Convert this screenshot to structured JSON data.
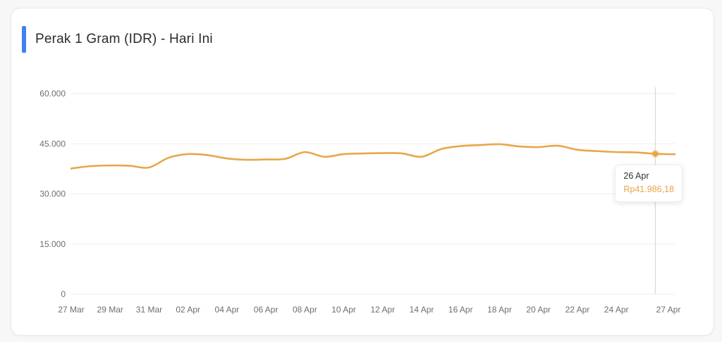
{
  "page": {
    "background": "#f7f7f7"
  },
  "card": {
    "accent_color": "#3d82f4",
    "title": "Perak 1 Gram (IDR) - Hari Ini"
  },
  "chart_data": {
    "type": "line",
    "title": "Perak 1 Gram (IDR) - Hari Ini",
    "line_color": "#e9a64a",
    "grid": "horizontal-only",
    "legend": "none",
    "ylim": [
      0,
      60000
    ],
    "y_ticks": [
      {
        "value": 60000,
        "label": "60.000"
      },
      {
        "value": 45000,
        "label": "45.000"
      },
      {
        "value": 30000,
        "label": "30.000"
      },
      {
        "value": 15000,
        "label": "15.000"
      },
      {
        "value": 0,
        "label": "0"
      }
    ],
    "x_ticks": [
      {
        "label": "27 Mar",
        "day": 0
      },
      {
        "label": "29 Mar",
        "day": 2
      },
      {
        "label": "31 Mar",
        "day": 4
      },
      {
        "label": "02 Apr",
        "day": 6
      },
      {
        "label": "04 Apr",
        "day": 8
      },
      {
        "label": "06 Apr",
        "day": 10
      },
      {
        "label": "08 Apr",
        "day": 12
      },
      {
        "label": "10 Apr",
        "day": 14
      },
      {
        "label": "12 Apr",
        "day": 16
      },
      {
        "label": "14 Apr",
        "day": 18
      },
      {
        "label": "16 Apr",
        "day": 20
      },
      {
        "label": "18 Apr",
        "day": 22
      },
      {
        "label": "20 Apr",
        "day": 24
      },
      {
        "label": "22 Apr",
        "day": 26
      },
      {
        "label": "24 Apr",
        "day": 28
      },
      {
        "label": "27 Apr",
        "day": 31
      }
    ],
    "x": [
      "27 Mar",
      "28 Mar",
      "29 Mar",
      "30 Mar",
      "31 Mar",
      "01 Apr",
      "02 Apr",
      "03 Apr",
      "04 Apr",
      "05 Apr",
      "06 Apr",
      "07 Apr",
      "08 Apr",
      "09 Apr",
      "10 Apr",
      "11 Apr",
      "12 Apr",
      "13 Apr",
      "14 Apr",
      "15 Apr",
      "16 Apr",
      "17 Apr",
      "18 Apr",
      "19 Apr",
      "20 Apr",
      "21 Apr",
      "22 Apr",
      "23 Apr",
      "24 Apr",
      "25 Apr",
      "26 Apr",
      "27 Apr"
    ],
    "series": [
      {
        "name": "Perak 1 Gram (IDR)",
        "values": [
          37600,
          38300,
          38500,
          38400,
          37900,
          40800,
          41900,
          41600,
          40600,
          40200,
          40300,
          40500,
          42500,
          41100,
          41900,
          42100,
          42200,
          42100,
          41100,
          43400,
          44300,
          44600,
          44850,
          44200,
          44000,
          44400,
          43200,
          42800,
          42500,
          42400,
          41986.18,
          41850
        ]
      }
    ]
  },
  "tooltip": {
    "point_index": 30,
    "date": "26 Apr",
    "value": "Rp41.986,18",
    "value_color": "#e9a64a"
  }
}
